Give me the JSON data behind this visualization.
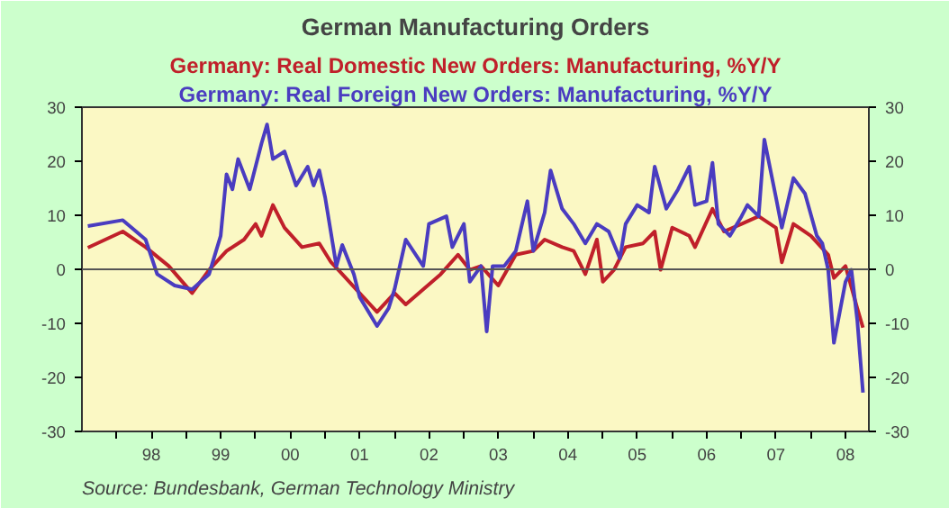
{
  "chart_data": {
    "type": "line",
    "title": "German Manufacturing Orders",
    "annotations": [
      "Source: Bundesbank, German Technology Ministry"
    ],
    "legend": "top",
    "grid": false,
    "marker": "none",
    "line_style": "solid",
    "xlim": [
      "1997-07",
      "2008-11"
    ],
    "xticks": [
      {
        "value": "1998",
        "label": null
      },
      {
        "value": "1998-07",
        "label": "98"
      },
      {
        "value": "1999",
        "label": null
      },
      {
        "value": "1999-07",
        "label": "99"
      },
      {
        "value": "2000",
        "label": null
      },
      {
        "value": "2000-07",
        "label": "00"
      },
      {
        "value": "2001",
        "label": null
      },
      {
        "value": "2001-07",
        "label": "01"
      },
      {
        "value": "2002",
        "label": null
      },
      {
        "value": "2002-07",
        "label": "02"
      },
      {
        "value": "2003",
        "label": null
      },
      {
        "value": "2003-07",
        "label": "03"
      },
      {
        "value": "2004",
        "label": null
      },
      {
        "value": "2004-07",
        "label": "04"
      },
      {
        "value": "2005",
        "label": null
      },
      {
        "value": "2005-07",
        "label": "05"
      },
      {
        "value": "2006",
        "label": null
      },
      {
        "value": "2006-07",
        "label": "06"
      },
      {
        "value": "2007",
        "label": null
      },
      {
        "value": "2007-07",
        "label": "07"
      },
      {
        "value": "2008",
        "label": null
      },
      {
        "value": "2008-07",
        "label": "08"
      }
    ],
    "ylim": [
      -30,
      30
    ],
    "yticks": [
      -30,
      -20,
      -10,
      0,
      10,
      20,
      30
    ],
    "y2lim": [
      -30,
      30
    ],
    "y2ticks": [
      -30,
      -20,
      -10,
      0,
      10,
      20,
      30
    ],
    "ref_lines": [
      {
        "axis": "y",
        "value": 0,
        "label": null,
        "color": "#555555"
      }
    ],
    "series": [
      {
        "name": "Germany: Real Domestic New Orders: Manufacturing, %Y/Y",
        "color": "#c0202a",
        "x": [
          "1997-08",
          "1998-02",
          "1998-06",
          "1998-10",
          "1999-02",
          "1999-05",
          "1999-08",
          "1999-11",
          "2000-01",
          "2000-02",
          "2000-04",
          "2000-06",
          "2000-09",
          "2000-12",
          "2001-02",
          "2001-04",
          "2001-07",
          "2001-10",
          "2002-01",
          "2002-03",
          "2002-06",
          "2002-09",
          "2002-12",
          "2003-02",
          "2003-04",
          "2003-07",
          "2003-10",
          "2004-01",
          "2004-03",
          "2004-06",
          "2004-08",
          "2004-10",
          "2004-12",
          "2005-01",
          "2005-03",
          "2005-05",
          "2005-08",
          "2005-10",
          "2005-11",
          "2006-01",
          "2006-04",
          "2006-05",
          "2006-08",
          "2006-10",
          "2007-01",
          "2007-04",
          "2007-07",
          "2007-08",
          "2007-10",
          "2008-01",
          "2008-04",
          "2008-05",
          "2008-07",
          "2008-09",
          "2008-10"
        ],
        "values": [
          4,
          7.0,
          4.1,
          0.6,
          -4.4,
          -0.1,
          3.4,
          5.5,
          8.4,
          6.2,
          11.9,
          7.7,
          4.1,
          4.8,
          1.3,
          -0.9,
          -4.4,
          -7.9,
          -4.4,
          -6.5,
          -3.7,
          -0.9,
          2.7,
          -0.1,
          0.6,
          -3.0,
          2.7,
          3.4,
          5.5,
          4.1,
          3.4,
          -0.9,
          5.5,
          -2.3,
          -0.1,
          4.1,
          4.8,
          7.0,
          -0.1,
          7.7,
          6.2,
          4.1,
          11.2,
          7.0,
          8.4,
          9.8,
          7.7,
          1.3,
          8.4,
          6.2,
          2.7,
          -1.6,
          0.6,
          -7.2,
          -10.8
        ]
      },
      {
        "name": "Germany: Real Foreign New Orders: Manufacturing, %Y/Y",
        "color": "#4a3cc0",
        "x": [
          "1997-08",
          "1998-02",
          "1998-06",
          "1998-08",
          "1998-11",
          "1999-02",
          "1999-05",
          "1999-07",
          "1999-08",
          "1999-09",
          "1999-10",
          "1999-12",
          "2000-02",
          "2000-03",
          "2000-04",
          "2000-06",
          "2000-08",
          "2000-10",
          "2000-11",
          "2000-12",
          "2001-01",
          "2001-03",
          "2001-04",
          "2001-06",
          "2001-07",
          "2001-10",
          "2001-12",
          "2002-01",
          "2002-03",
          "2002-06",
          "2002-07",
          "2002-10",
          "2002-11",
          "2003-01",
          "2003-02",
          "2003-04",
          "2003-05",
          "2003-06",
          "2003-08",
          "2003-10",
          "2003-12",
          "2004-01",
          "2004-03",
          "2004-04",
          "2004-06",
          "2004-08",
          "2004-10",
          "2004-12",
          "2005-02",
          "2005-04",
          "2005-05",
          "2005-07",
          "2005-09",
          "2005-10",
          "2005-12",
          "2006-02",
          "2006-04",
          "2006-05",
          "2006-07",
          "2006-08",
          "2006-09",
          "2006-11",
          "2007-01",
          "2007-02",
          "2007-04",
          "2007-05",
          "2007-07",
          "2007-08",
          "2007-10",
          "2007-12",
          "2008-02",
          "2008-03",
          "2008-04",
          "2008-05",
          "2008-07",
          "2008-08",
          "2008-09",
          "2008-10"
        ],
        "values": [
          8,
          9.1,
          5.5,
          -0.9,
          -3.0,
          -3.7,
          -0.9,
          6.2,
          17.6,
          14.8,
          20.4,
          14.8,
          23.3,
          26.8,
          20.4,
          21.8,
          15.5,
          19.0,
          15.5,
          18.3,
          13.3,
          0.6,
          4.5,
          -0.9,
          -5.1,
          -10.5,
          -7.2,
          -3.7,
          5.5,
          0.6,
          8.4,
          9.8,
          4.1,
          8.4,
          -2.3,
          0.6,
          -11.5,
          0.6,
          0.6,
          3.4,
          12.6,
          3.4,
          10.5,
          18.3,
          11.2,
          8.4,
          4.8,
          8.4,
          7.0,
          2.0,
          8.4,
          11.9,
          10.5,
          19.0,
          11.2,
          14.8,
          19.0,
          11.9,
          12.6,
          19.7,
          8.4,
          6.2,
          9.8,
          11.9,
          9.8,
          24.0,
          13.3,
          7.7,
          16.9,
          14.0,
          6.2,
          4.8,
          -0.1,
          -13.6,
          -2.3,
          -0.1,
          -9.4,
          -22.8
        ]
      }
    ]
  }
}
